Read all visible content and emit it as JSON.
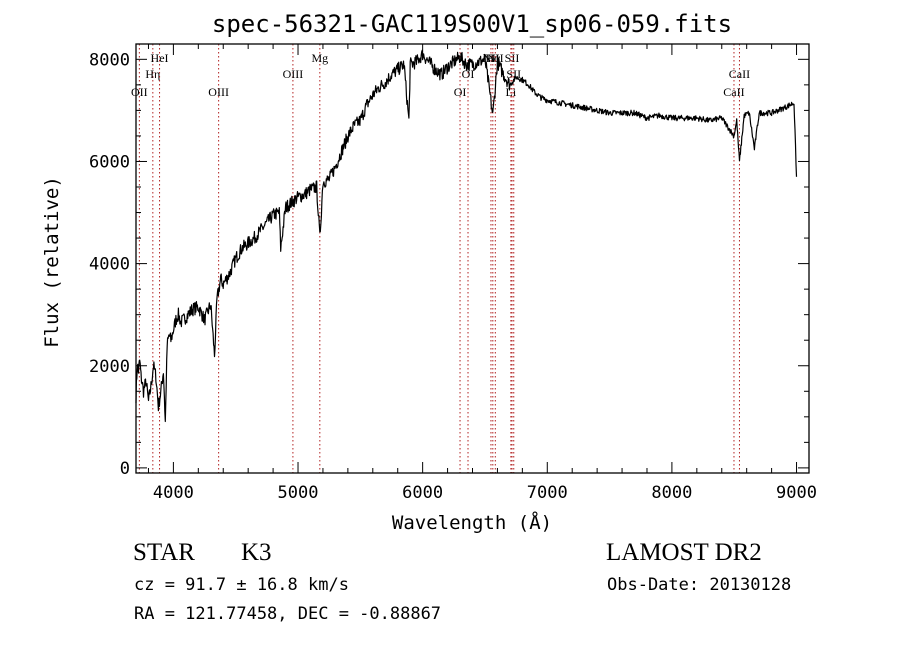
{
  "chart_data": {
    "type": "line",
    "title": "spec-56321-GAC119S00V1_sp06-059.fits",
    "xlabel": "Wavelength (Å)",
    "ylabel": "Flux (relative)",
    "xlim": [
      3700,
      9100
    ],
    "ylim": [
      -100,
      8300
    ],
    "xticks": [
      {
        "value": 4000,
        "label": "4000"
      },
      {
        "value": 5000,
        "label": "5000"
      },
      {
        "value": 6000,
        "label": "6000"
      },
      {
        "value": 7000,
        "label": "7000"
      },
      {
        "value": 8000,
        "label": "8000"
      },
      {
        "value": 9000,
        "label": "9000"
      }
    ],
    "yticks": [
      {
        "value": 0,
        "label": "0"
      },
      {
        "value": 2000,
        "label": "2000"
      },
      {
        "value": 4000,
        "label": "4000"
      },
      {
        "value": 6000,
        "label": "6000"
      },
      {
        "value": 8000,
        "label": "8000"
      }
    ],
    "grid": false,
    "line_color": "#000000",
    "marker_color": "#b22222",
    "series": [
      {
        "x": [
          3700,
          3710,
          3720,
          3730,
          3740,
          3760,
          3780,
          3800,
          3820,
          3840,
          3860,
          3880,
          3900,
          3920,
          3935,
          3950,
          3965,
          3980,
          4000,
          4020,
          4040,
          4060,
          4080,
          4100,
          4150,
          4200,
          4250,
          4300,
          4330,
          4350,
          4380,
          4400,
          4450,
          4500,
          4550,
          4600,
          4650,
          4700,
          4750,
          4800,
          4850,
          4861,
          4900,
          4950,
          5000,
          5050,
          5100,
          5150,
          5175,
          5200,
          5250,
          5300,
          5350,
          5400,
          5450,
          5500,
          5550,
          5600,
          5650,
          5700,
          5750,
          5800,
          5850,
          5890,
          5900,
          5950,
          6000,
          6050,
          6100,
          6150,
          6200,
          6250,
          6300,
          6350,
          6400,
          6450,
          6500,
          6530,
          6563,
          6600,
          6650,
          6700,
          6750,
          6800,
          6850,
          6900,
          6950,
          7000,
          7100,
          7200,
          7300,
          7400,
          7500,
          7600,
          7700,
          7800,
          7900,
          8000,
          8100,
          8200,
          8300,
          8400,
          8498,
          8520,
          8542,
          8580,
          8620,
          8662,
          8700,
          8800,
          8900,
          8980,
          9000
        ],
        "y": [
          1400,
          2000,
          1900,
          2100,
          1800,
          1500,
          1700,
          1300,
          1600,
          2000,
          1800,
          1200,
          1500,
          1900,
          900,
          2400,
          2600,
          2500,
          2700,
          2900,
          3000,
          2850,
          2900,
          2950,
          3100,
          3150,
          2900,
          3200,
          2200,
          3300,
          3700,
          3600,
          3800,
          4100,
          4300,
          4400,
          4500,
          4650,
          4800,
          4950,
          5000,
          4300,
          5100,
          5200,
          5300,
          5350,
          5450,
          5500,
          4500,
          5600,
          5650,
          5900,
          6200,
          6500,
          6700,
          6800,
          7100,
          7300,
          7450,
          7550,
          7700,
          7800,
          7900,
          6800,
          7900,
          7950,
          8100,
          7950,
          7800,
          7700,
          7850,
          7950,
          8050,
          7900,
          7900,
          7950,
          8000,
          7500,
          6900,
          7950,
          7700,
          7500,
          7650,
          7600,
          7500,
          7350,
          7250,
          7200,
          7150,
          7100,
          7050,
          7000,
          6950,
          6950,
          6950,
          6850,
          6900,
          6850,
          6850,
          6850,
          6800,
          6850,
          6500,
          6800,
          6000,
          6900,
          6950,
          6250,
          6950,
          6950,
          7050,
          7150,
          5700
        ]
      }
    ],
    "annotations": [
      {
        "label": "OII",
        "x": 3727,
        "row": 3
      },
      {
        "label": "Hη",
        "x": 3835,
        "row": 2
      },
      {
        "label": "HeI",
        "x": 3889,
        "row": 1
      },
      {
        "label": "OIII",
        "x": 4363,
        "row": 3
      },
      {
        "label": "OIII",
        "x": 4959,
        "row": 2
      },
      {
        "label": "Mg",
        "x": 5175,
        "row": 1
      },
      {
        "label": "OI",
        "x": 6300,
        "row": 3
      },
      {
        "label": "OI",
        "x": 6364,
        "row": 2
      },
      {
        "label": "NII",
        "x": 6548,
        "row": 1
      },
      {
        "label": "Hα",
        "x": 6563,
        "row": 1
      },
      {
        "label": "NII",
        "x": 6583,
        "row": 1
      },
      {
        "label": "SII",
        "x": 6717,
        "row": 1
      },
      {
        "label": "SII",
        "x": 6731,
        "row": 2
      },
      {
        "label": "Li",
        "x": 6708,
        "row": 3
      },
      {
        "label": "CaII",
        "x": 8542,
        "row": 2
      },
      {
        "label": "CaII",
        "x": 8498,
        "row": 3
      }
    ]
  },
  "info": {
    "object_class": "STAR",
    "subclass": "K3",
    "survey": "LAMOST DR2",
    "redshift_line": "cz = 91.7 ± 16.8 km/s",
    "obs_date": "Obs-Date: 20130128",
    "coords": "RA = 121.77458, DEC =  -0.88867"
  }
}
